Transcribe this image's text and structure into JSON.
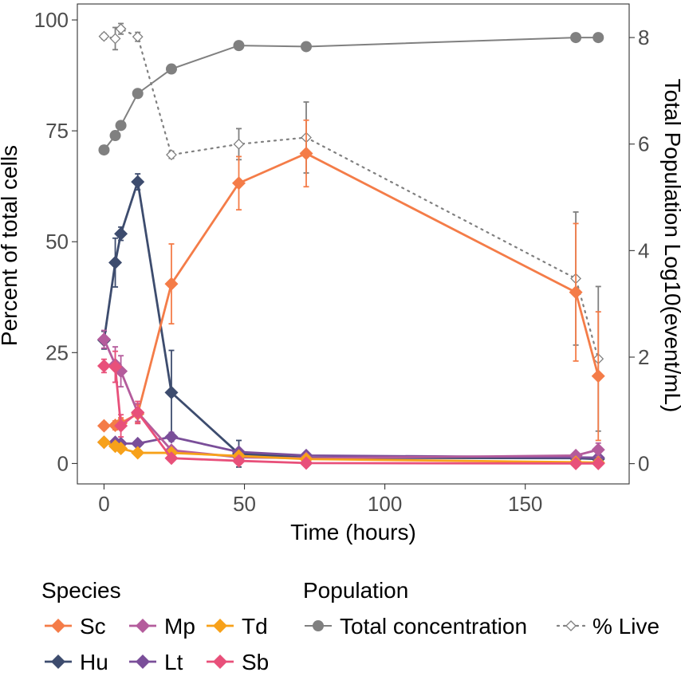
{
  "chart_data": {
    "type": "line",
    "xlabel": "Time (hours)",
    "ylabel": "Percent of total cells",
    "y2label": "Total Population Log10(event/mL)",
    "xlim": [
      -9.5,
      187
    ],
    "ylim": [
      -4.6,
      103.6
    ],
    "y2lim": [
      -0.38,
      8.63
    ],
    "xticks": [
      0,
      50,
      100,
      150
    ],
    "yticks": [
      0,
      25,
      50,
      75,
      100
    ],
    "y2ticks": [
      0,
      2,
      4,
      6,
      8
    ],
    "grid": false,
    "legend": {
      "position": "bottom",
      "groups": [
        {
          "title": "Species",
          "entries": [
            "Sc",
            "Mp",
            "Td",
            "Hu",
            "Lt",
            "Sb"
          ]
        },
        {
          "title": "Population",
          "entries": [
            "Total concentration",
            "% Live"
          ]
        }
      ]
    },
    "species": [
      {
        "name": "Hu",
        "color": "#3d4c6e",
        "points": [
          [
            0,
            27.8
          ],
          [
            4,
            45.3
          ],
          [
            6,
            51.8
          ],
          [
            12,
            63.5
          ],
          [
            24,
            16.0
          ],
          [
            48,
            2.2
          ],
          [
            72,
            1.3
          ],
          [
            168,
            1.2
          ],
          [
            176,
            1.0
          ]
        ],
        "err": [
          2.0,
          5.5,
          1.5,
          1.8,
          9.5,
          3.0,
          1.0,
          1.0,
          1.0
        ]
      },
      {
        "name": "Sc",
        "color": "#f47c48",
        "points": [
          [
            0,
            8.5
          ],
          [
            4,
            8.6
          ],
          [
            6,
            9.1
          ],
          [
            12,
            11.2
          ],
          [
            24,
            40.5
          ],
          [
            48,
            63.2
          ],
          [
            72,
            69.9
          ],
          [
            168,
            38.6
          ],
          [
            176,
            19.7
          ]
        ],
        "err": [
          0.8,
          1.0,
          1.2,
          2.0,
          9.0,
          6.0,
          7.5,
          15.5,
          14.5
        ]
      },
      {
        "name": "Lt",
        "color": "#7a4e99",
        "points": [
          [
            0,
            4.8
          ],
          [
            4,
            4.8
          ],
          [
            6,
            4.5
          ],
          [
            12,
            4.5
          ],
          [
            24,
            6.0
          ],
          [
            48,
            2.6
          ],
          [
            72,
            1.8
          ],
          [
            168,
            1.4
          ],
          [
            176,
            1.3
          ]
        ],
        "err": [
          0.5,
          0.5,
          0.5,
          0.5,
          1.0,
          0.5,
          0.3,
          0.3,
          0.3
        ]
      },
      {
        "name": "Mp",
        "color": "#b45c9c",
        "points": [
          [
            0,
            28.0
          ],
          [
            4,
            22.3
          ],
          [
            6,
            20.8
          ],
          [
            12,
            11.5
          ],
          [
            24,
            3.0
          ],
          [
            48,
            1.4
          ],
          [
            72,
            1.2
          ],
          [
            168,
            1.8
          ],
          [
            176,
            3.1
          ]
        ],
        "err": [
          2.0,
          4.0,
          3.5,
          2.0,
          0.8,
          0.5,
          0.3,
          0.5,
          1.5
        ]
      },
      {
        "name": "Td",
        "color": "#f7a11a",
        "points": [
          [
            0,
            4.8
          ],
          [
            4,
            3.9
          ],
          [
            6,
            3.4
          ],
          [
            12,
            2.4
          ],
          [
            24,
            2.4
          ],
          [
            48,
            1.7
          ],
          [
            72,
            1.0
          ],
          [
            168,
            0.3
          ],
          [
            176,
            0.2
          ]
        ],
        "err": [
          0.5,
          0.5,
          0.5,
          0.5,
          0.5,
          0.3,
          0.3,
          0.2,
          0.2
        ]
      },
      {
        "name": "Sb",
        "color": "#e8507a",
        "points": [
          [
            0,
            22.0
          ],
          [
            4,
            21.8
          ],
          [
            6,
            8.5
          ],
          [
            12,
            11.5
          ],
          [
            24,
            1.2
          ],
          [
            48,
            0.6
          ],
          [
            72,
            0.1
          ],
          [
            168,
            0.0
          ],
          [
            176,
            0.0
          ]
        ],
        "err": [
          1.5,
          3.5,
          2.5,
          2.5,
          0.5,
          0.3,
          0.2,
          0.2,
          0.2
        ]
      }
    ],
    "total_concentration": {
      "color": "#808080",
      "points": [
        [
          0,
          5.89
        ],
        [
          4,
          6.16
        ],
        [
          6,
          6.35
        ],
        [
          12,
          6.95
        ],
        [
          24,
          7.41
        ],
        [
          48,
          7.85
        ],
        [
          72,
          7.83
        ],
        [
          168,
          8.0
        ],
        [
          176,
          8.0
        ]
      ]
    },
    "percent_live": {
      "color": "#808080",
      "points": [
        [
          0,
          96.3
        ],
        [
          4,
          95.8
        ],
        [
          6,
          98.0
        ],
        [
          12,
          96.2
        ],
        [
          24,
          69.6
        ],
        [
          48,
          72.0
        ],
        [
          72,
          73.5
        ],
        [
          168,
          41.7
        ],
        [
          176,
          23.6
        ]
      ],
      "err": [
        0.6,
        2.5,
        1.2,
        1.0,
        0.8,
        3.5,
        8.0,
        15.0,
        16.3
      ]
    }
  }
}
